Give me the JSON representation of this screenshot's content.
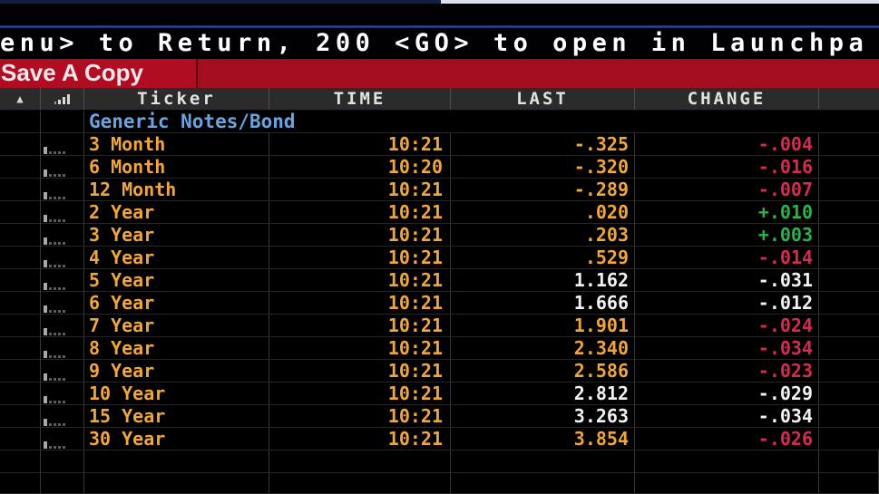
{
  "window": {
    "message": "enu> to Return, 200 <GO> to open in Launchpa",
    "toolbar": {
      "save_copy_label": "Save A Copy"
    }
  },
  "table": {
    "section_label": "Generic Notes/Bond",
    "headers": {
      "ticker": "Ticker",
      "time": "TIME",
      "last": "LAST",
      "change": "CHANGE"
    },
    "header_icons": [
      "alert-triangle-icon",
      "bar-chart-icon"
    ],
    "rows": [
      {
        "ticker": "3 Month",
        "time": "10:21",
        "last": "-.325",
        "change": "-.004",
        "last_color": "amber",
        "change_color": "red"
      },
      {
        "ticker": "6 Month",
        "time": "10:20",
        "last": "-.320",
        "change": "-.016",
        "last_color": "amber",
        "change_color": "red"
      },
      {
        "ticker": "12 Month",
        "time": "10:21",
        "last": "-.289",
        "change": "-.007",
        "last_color": "amber",
        "change_color": "red"
      },
      {
        "ticker": "2 Year",
        "time": "10:21",
        "last": ".020",
        "change": "+.010",
        "last_color": "amber",
        "change_color": "green"
      },
      {
        "ticker": "3 Year",
        "time": "10:21",
        "last": ".203",
        "change": "+.003",
        "last_color": "amber",
        "change_color": "green"
      },
      {
        "ticker": "4 Year",
        "time": "10:21",
        "last": ".529",
        "change": "-.014",
        "last_color": "amber",
        "change_color": "red"
      },
      {
        "ticker": "5 Year",
        "time": "10:21",
        "last": "1.162",
        "change": "-.031",
        "last_color": "white",
        "change_color": "white"
      },
      {
        "ticker": "6 Year",
        "time": "10:21",
        "last": "1.666",
        "change": "-.012",
        "last_color": "white",
        "change_color": "white"
      },
      {
        "ticker": "7 Year",
        "time": "10:21",
        "last": "1.901",
        "change": "-.024",
        "last_color": "amber",
        "change_color": "red"
      },
      {
        "ticker": "8 Year",
        "time": "10:21",
        "last": "2.340",
        "change": "-.034",
        "last_color": "amber",
        "change_color": "red"
      },
      {
        "ticker": "9 Year",
        "time": "10:21",
        "last": "2.586",
        "change": "-.023",
        "last_color": "amber",
        "change_color": "red"
      },
      {
        "ticker": "10 Year",
        "time": "10:21",
        "last": "2.812",
        "change": "-.029",
        "last_color": "white",
        "change_color": "white"
      },
      {
        "ticker": "15 Year",
        "time": "10:21",
        "last": "3.263",
        "change": "-.034",
        "last_color": "white",
        "change_color": "white"
      },
      {
        "ticker": "30 Year",
        "time": "10:21",
        "last": "3.854",
        "change": "-.026",
        "last_color": "amber",
        "change_color": "red"
      }
    ]
  },
  "colors": {
    "amber": "#f0a63c",
    "red": "#d62b50",
    "green": "#2cb14b",
    "white_value": "#f2f2f2",
    "section_blue": "#6ca2dd",
    "redbar_left": "#b00d22",
    "redbar_right": "#a40d1f"
  }
}
